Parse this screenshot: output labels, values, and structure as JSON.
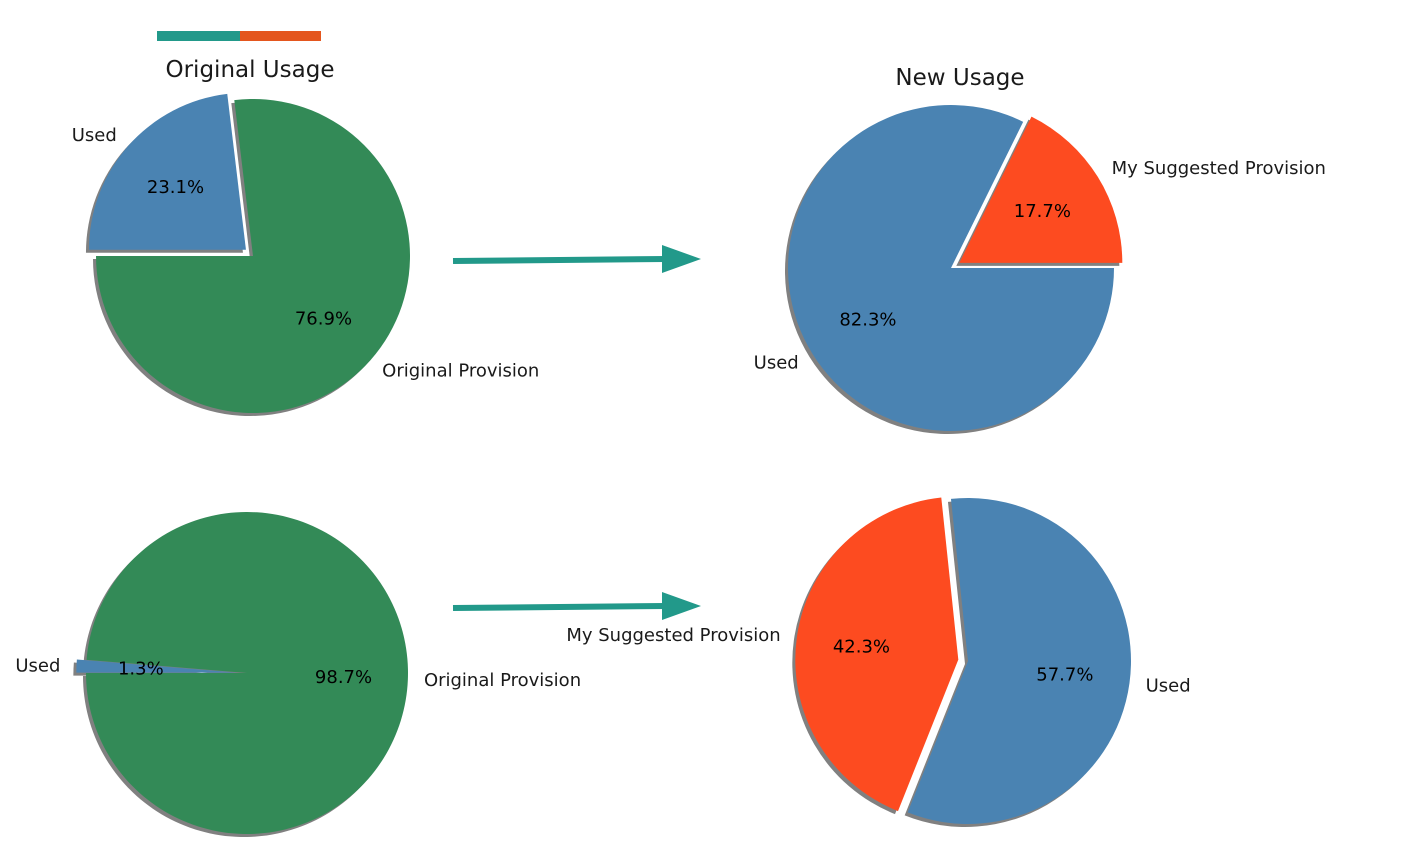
{
  "colors": {
    "provision": "#338a57",
    "used": "#4a83b2",
    "suggested": "#fd4b20",
    "arrow": "#22998a",
    "header_bar_left": "#22998a",
    "header_bar_right": "#e4561e",
    "shadow": "#808080"
  },
  "chart_data": [
    {
      "type": "pie",
      "title": "Original Usage",
      "slices": [
        {
          "label": "Original Provision",
          "value": 76.9,
          "pct_label": "76.9%",
          "exploded": false,
          "color": "#338a57"
        },
        {
          "label": "Used",
          "value": 23.1,
          "pct_label": "23.1%",
          "exploded": true,
          "color": "#4a83b2"
        }
      ]
    },
    {
      "type": "pie",
      "title": "New Usage",
      "slices": [
        {
          "label": "My Suggested Provision",
          "value": 17.7,
          "pct_label": "17.7%",
          "exploded": true,
          "color": "#fd4b20"
        },
        {
          "label": "Used",
          "value": 82.3,
          "pct_label": "82.3%",
          "exploded": false,
          "color": "#4a83b2"
        }
      ]
    },
    {
      "type": "pie",
      "title": "",
      "slices": [
        {
          "label": "Original Provision",
          "value": 98.7,
          "pct_label": "98.7%",
          "exploded": false,
          "color": "#338a57"
        },
        {
          "label": "Used",
          "value": 1.3,
          "pct_label": "1.3%",
          "exploded": true,
          "color": "#4a83b2"
        }
      ]
    },
    {
      "type": "pie",
      "title": "",
      "slices": [
        {
          "label": "My Suggested Provision",
          "value": 42.3,
          "pct_label": "42.3%",
          "exploded": true,
          "color": "#fd4b20"
        },
        {
          "label": "Used",
          "value": 57.7,
          "pct_label": "57.7%",
          "exploded": false,
          "color": "#4a83b2"
        }
      ]
    }
  ]
}
